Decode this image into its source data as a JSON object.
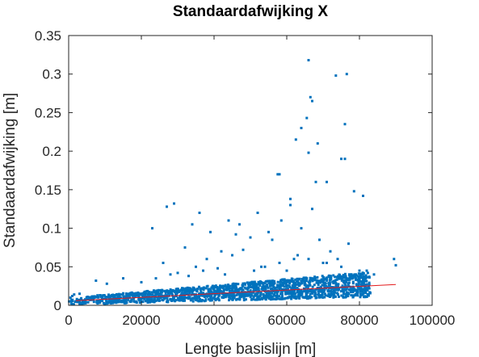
{
  "chart_data": {
    "type": "scatter",
    "title": "Standaardafwijking X",
    "xlabel": "Lengte basislijn [m]",
    "ylabel": "Standaardafwijking [m]",
    "xlim": [
      0,
      100000
    ],
    "ylim": [
      0,
      0.35
    ],
    "xticks": [
      0,
      20000,
      40000,
      60000,
      80000,
      100000
    ],
    "xtick_labels": [
      "0",
      "20000",
      "40000",
      "60000",
      "80000",
      "100000"
    ],
    "yticks": [
      0,
      0.05,
      0.1,
      0.15,
      0.2,
      0.25,
      0.3,
      0.35
    ],
    "ytick_labels": [
      "0",
      "0.05",
      "0.1",
      "0.15",
      "0.2",
      "0.25",
      "0.3",
      "0.35"
    ],
    "grid": false,
    "box": true,
    "series": [
      {
        "marker_color": "#0072BD",
        "x": [
          66000,
          73500,
          76500,
          66500,
          67000,
          65500,
          64000,
          76000,
          62500,
          66000,
          68500,
          76000,
          57500,
          58000,
          71000,
          78500,
          75000,
          68000,
          81000,
          61000,
          67000,
          58500,
          27000,
          29000,
          34000,
          36000,
          39000,
          44000,
          46000,
          47000,
          50000,
          52000,
          55000,
          23000,
          32000,
          42000,
          56000,
          61000,
          64000,
          69000,
          72000,
          74000,
          79000,
          82000,
          89500,
          90000,
          45000,
          48000,
          53000,
          26000,
          38000,
          60000,
          70000,
          77000,
          63000,
          35000,
          51000,
          43000,
          30000,
          7500,
          10500,
          15000,
          20000,
          24000,
          28000,
          33000,
          37000,
          41000,
          54000,
          58000,
          62000,
          66000,
          71000,
          75000,
          80000,
          84000,
          3000,
          1000,
          500,
          1500
        ],
        "y": [
          0.318,
          0.298,
          0.3,
          0.27,
          0.265,
          0.243,
          0.23,
          0.235,
          0.215,
          0.198,
          0.21,
          0.19,
          0.17,
          0.17,
          0.16,
          0.148,
          0.19,
          0.16,
          0.142,
          0.138,
          0.125,
          0.11,
          0.128,
          0.132,
          0.105,
          0.12,
          0.095,
          0.11,
          0.092,
          0.105,
          0.088,
          0.12,
          0.095,
          0.1,
          0.075,
          0.07,
          0.085,
          0.13,
          0.1,
          0.085,
          0.07,
          0.06,
          0.04,
          0.045,
          0.06,
          0.052,
          0.065,
          0.072,
          0.05,
          0.055,
          0.06,
          0.045,
          0.055,
          0.08,
          0.065,
          0.05,
          0.045,
          0.04,
          0.042,
          0.032,
          0.028,
          0.035,
          0.03,
          0.035,
          0.04,
          0.038,
          0.045,
          0.048,
          0.05,
          0.055,
          0.06,
          0.06,
          0.055,
          0.05,
          0.045,
          0.04,
          0.015,
          0.012,
          0.01,
          0.014
        ]
      },
      {
        "type": "line",
        "line_color": "#E31A1C",
        "x": [
          2000,
          90000
        ],
        "y": [
          0.006,
          0.027
        ]
      }
    ]
  }
}
